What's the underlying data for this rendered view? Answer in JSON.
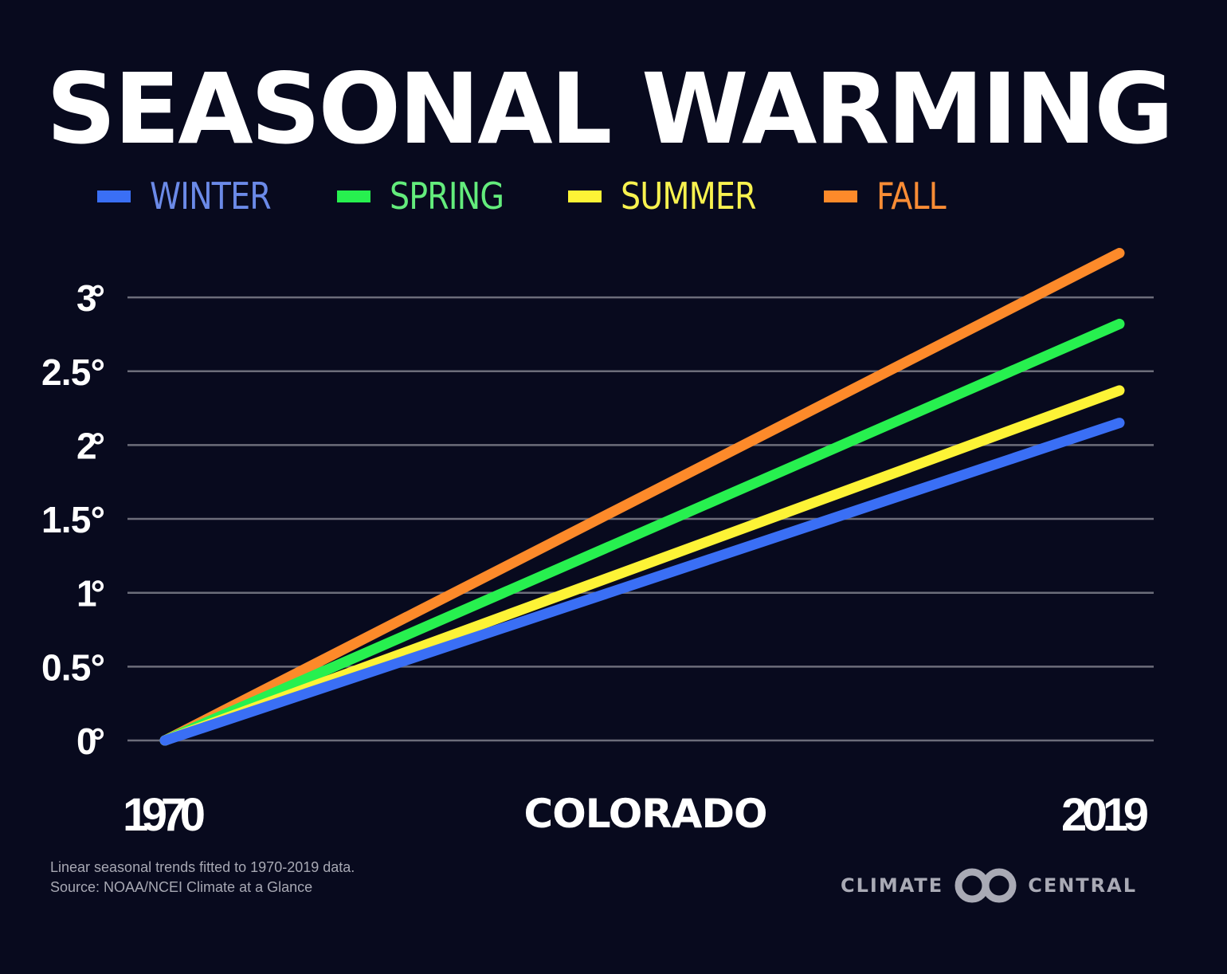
{
  "title": "SEASONAL WARMING",
  "region": "COLORADO",
  "footnote": {
    "line1": "Linear seasonal trends fitted to 1970-2019 data.",
    "line2": "Source: NOAA/NCEI Climate at a Glance"
  },
  "logo": {
    "left": "CLIMATE",
    "right": "CENTRAL",
    "mark_icon": "interlocking-rings-icon"
  },
  "colors": {
    "background": "#080a1e",
    "grid": "#6c6d7a"
  },
  "chart_data": {
    "type": "line",
    "title": "SEASONAL WARMING",
    "subtitle": "COLORADO",
    "xlabel": "",
    "ylabel": "",
    "x": [
      1970,
      2019
    ],
    "xlim": [
      1970,
      2019
    ],
    "x_tick_labels": [
      "1970",
      "2019"
    ],
    "ylim": [
      0,
      3.3
    ],
    "y_ticks": [
      0,
      0.5,
      1,
      1.5,
      2,
      2.5,
      3
    ],
    "y_tick_labels": [
      "0°",
      "0.5°",
      "1°",
      "1.5°",
      "2°",
      "2.5°",
      "3°"
    ],
    "grid": true,
    "legend_position": "top",
    "series": [
      {
        "name": "WINTER",
        "color": "#3a6ff5",
        "label_color": "#6b8ae8",
        "values": [
          0,
          2.15
        ]
      },
      {
        "name": "SPRING",
        "color": "#27f04f",
        "label_color": "#63ec7c",
        "values": [
          0,
          2.82
        ]
      },
      {
        "name": "SUMMER",
        "color": "#fdf336",
        "label_color": "#f8f24f",
        "values": [
          0,
          2.37
        ]
      },
      {
        "name": "FALL",
        "color": "#fd8a2a",
        "label_color": "#f98c35",
        "values": [
          0,
          3.3
        ]
      }
    ]
  }
}
